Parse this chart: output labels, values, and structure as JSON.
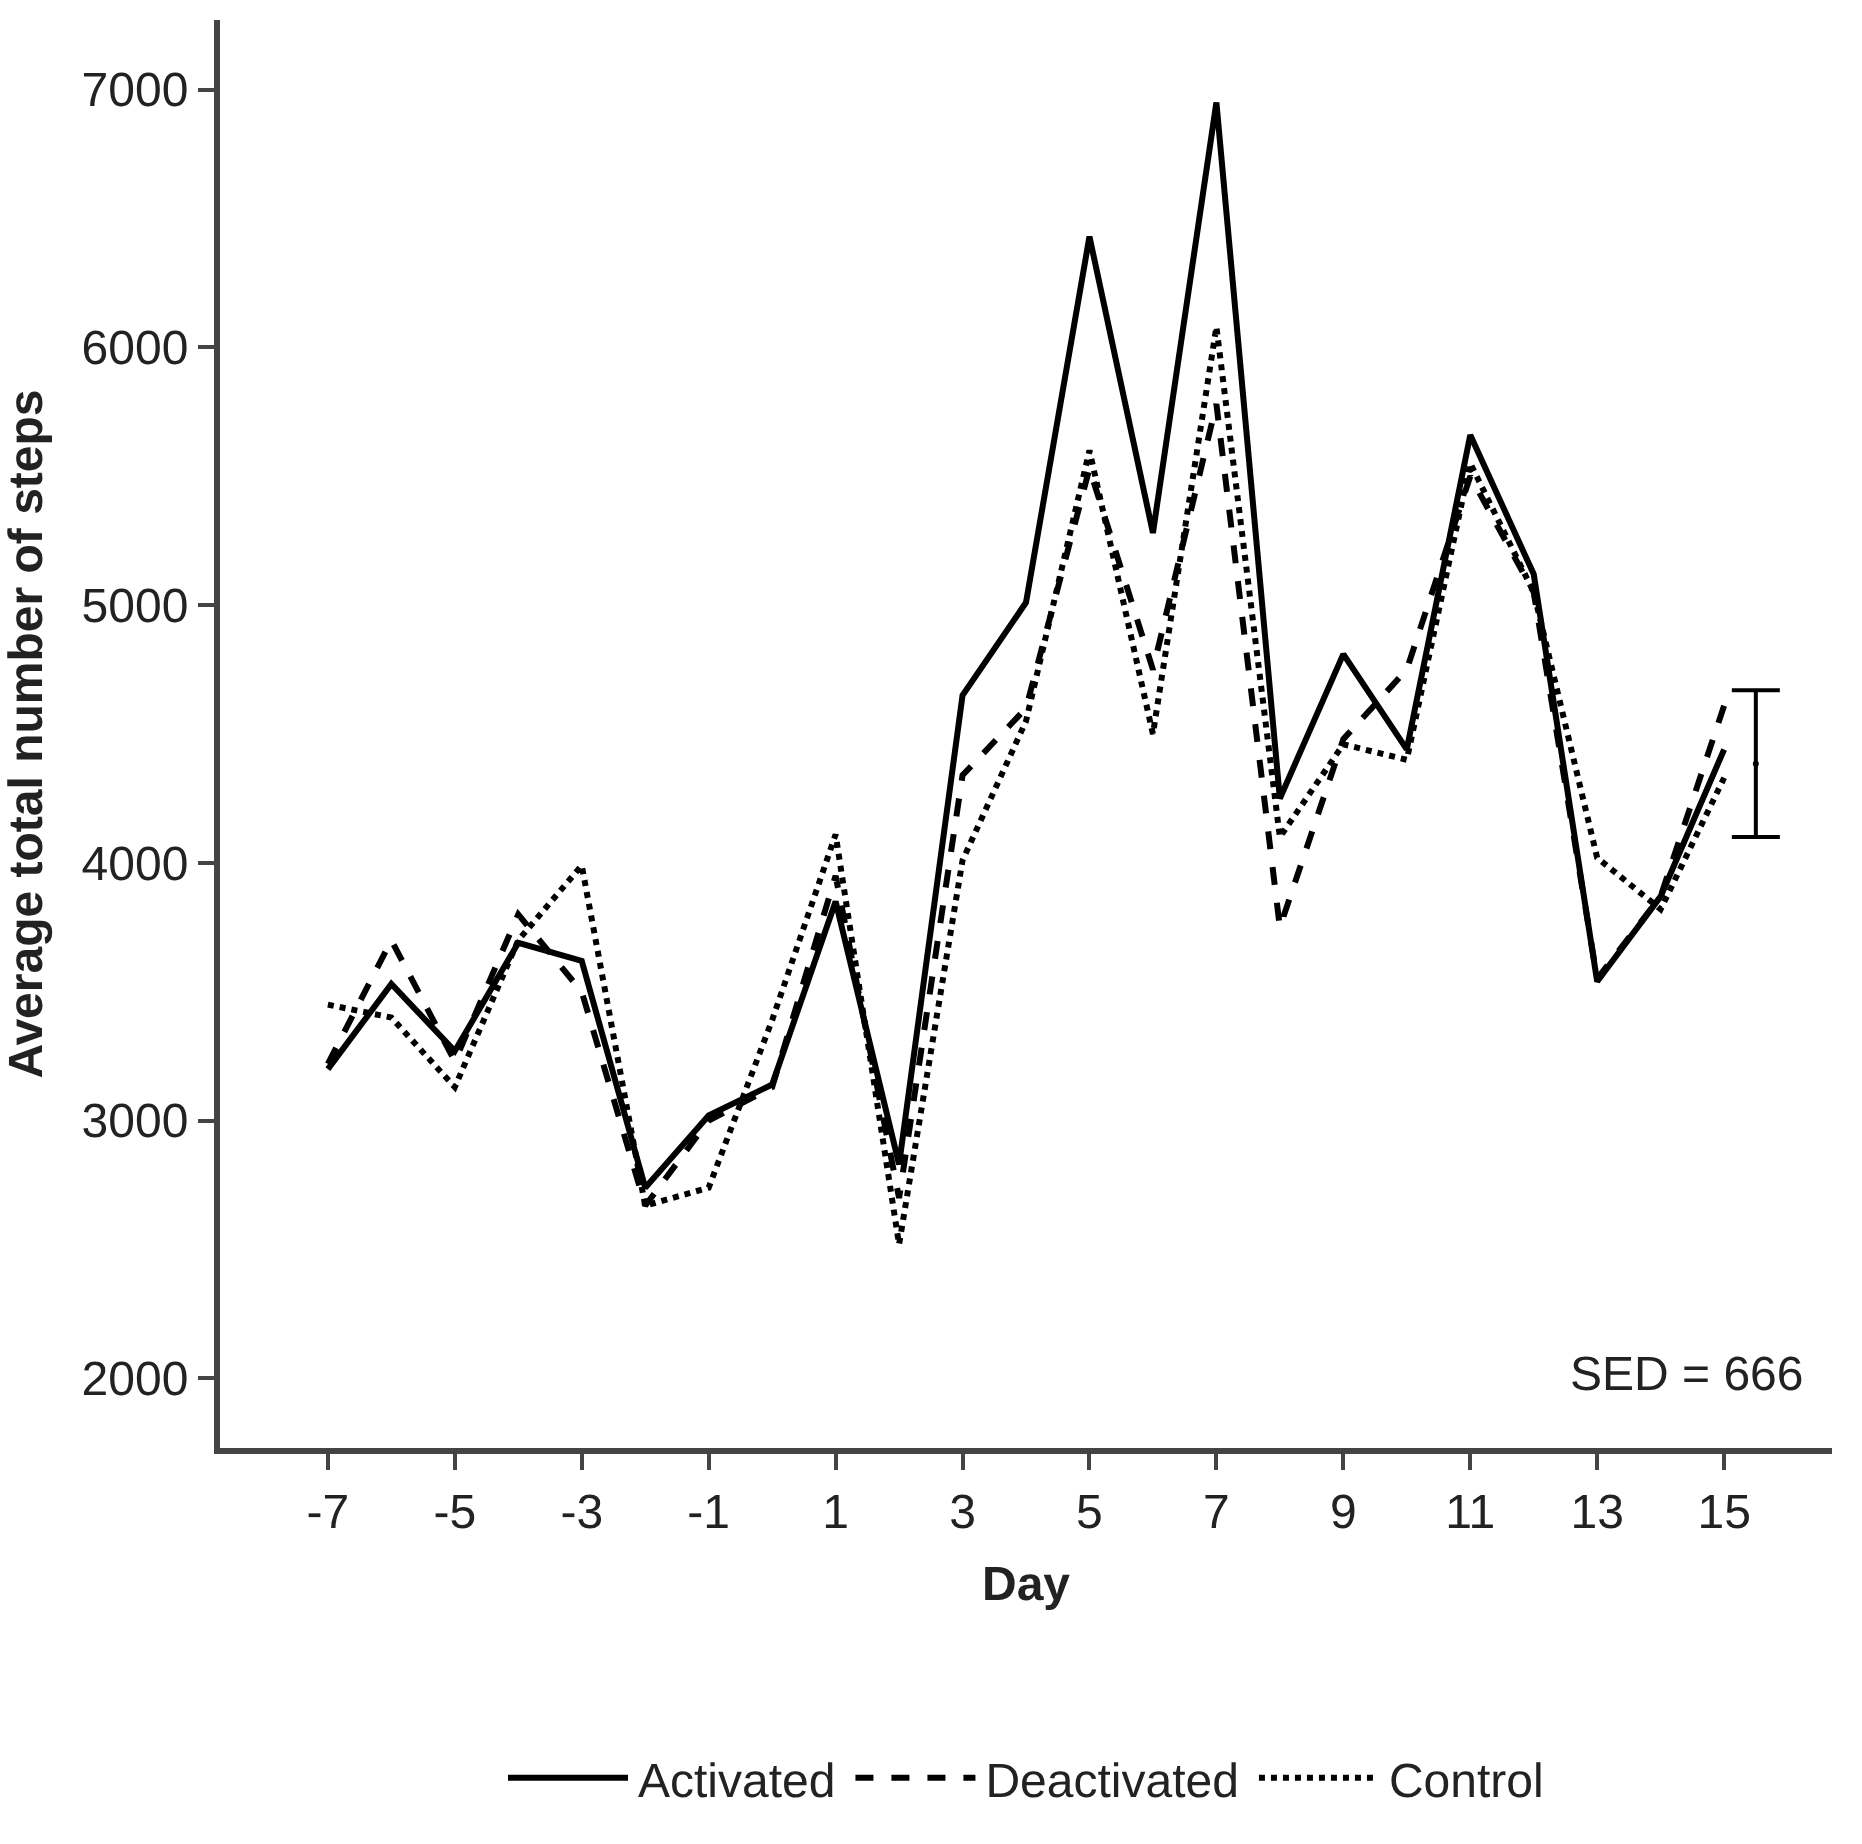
{
  "chart_data": {
    "type": "line",
    "xlabel": "Day",
    "ylabel": "Average total number of steps",
    "x": [
      -7,
      -6,
      -5,
      -4,
      -3,
      -2,
      -1,
      0,
      1,
      2,
      3,
      4,
      5,
      6,
      7,
      8,
      9,
      10,
      11,
      12,
      13,
      14,
      15
    ],
    "xlim": [
      -8.7,
      16.7
    ],
    "xticks": [
      -7,
      -5,
      -3,
      -1,
      1,
      3,
      5,
      7,
      9,
      11,
      13,
      15
    ],
    "ylim": [
      1730,
      7270
    ],
    "yticks": [
      2000,
      3000,
      4000,
      5000,
      6000,
      7000
    ],
    "legend": "bottom",
    "series": [
      {
        "name": "Activated",
        "color": "#000000",
        "line_style": "solid",
        "values": [
          3200,
          3530,
          3270,
          3690,
          3620,
          2740,
          3020,
          3140,
          3850,
          2830,
          4650,
          5010,
          6430,
          5280,
          6950,
          4250,
          4810,
          4440,
          5660,
          5120,
          3540,
          3870,
          4440
        ]
      },
      {
        "name": "Deactivated",
        "color": "#000000",
        "line_style": "dashed",
        "values": [
          3220,
          3700,
          3230,
          3800,
          3500,
          2670,
          3000,
          3130,
          3950,
          2700,
          4340,
          4600,
          5530,
          4750,
          5780,
          3750,
          4480,
          4750,
          5500,
          5050,
          3550,
          3870,
          4610
        ]
      },
      {
        "name": "Control",
        "color": "#000000",
        "line_style": "dotted",
        "values": [
          3450,
          3400,
          3130,
          3700,
          3990,
          2670,
          2740,
          3390,
          4110,
          2520,
          4010,
          4550,
          5600,
          4500,
          6080,
          4100,
          4460,
          4400,
          5550,
          5050,
          4020,
          3820,
          4330
        ]
      },
      {
        "type": "scatter",
        "color": "#000000",
        "marker": "none",
        "x": [
          15.5
        ],
        "values": [
          4385
        ],
        "errors": [
          [
            4100,
            4670
          ]
        ]
      }
    ],
    "annotations": [
      "SED = 666"
    ]
  }
}
